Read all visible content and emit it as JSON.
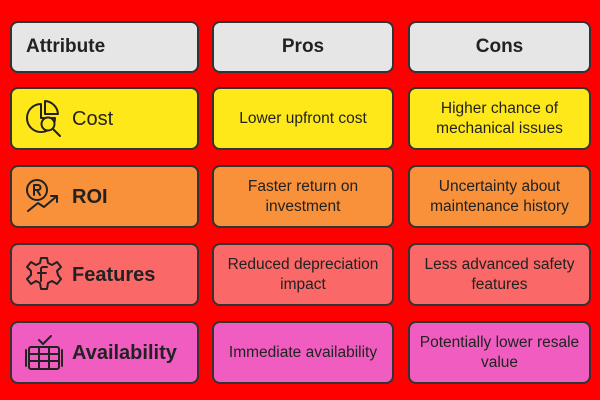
{
  "colors": {
    "background": "#ff0000",
    "header": "#e6e6e6",
    "cost": "#ffe81a",
    "roi": "#f8913a",
    "features": "#fa6868",
    "availability": "#f05cc0"
  },
  "headers": {
    "attribute": "Attribute",
    "pros": "Pros",
    "cons": "Cons"
  },
  "rows": [
    {
      "attribute": "Cost",
      "icon": "pie-chart-magnifier-icon",
      "pros": "Lower upfront cost",
      "cons": "Higher chance of mechanical issues"
    },
    {
      "attribute": "ROI",
      "icon": "rupee-growth-icon",
      "pros": "Faster return on investment",
      "cons": "Uncertainty about maintenance history"
    },
    {
      "attribute": "Features",
      "icon": "gear-f-icon",
      "pros": "Reduced depreciation impact",
      "cons": "Less advanced safety features"
    },
    {
      "attribute": "Availability",
      "icon": "checklist-stack-icon",
      "pros": "Immediate availability",
      "cons": "Potentially lower resale value"
    }
  ]
}
